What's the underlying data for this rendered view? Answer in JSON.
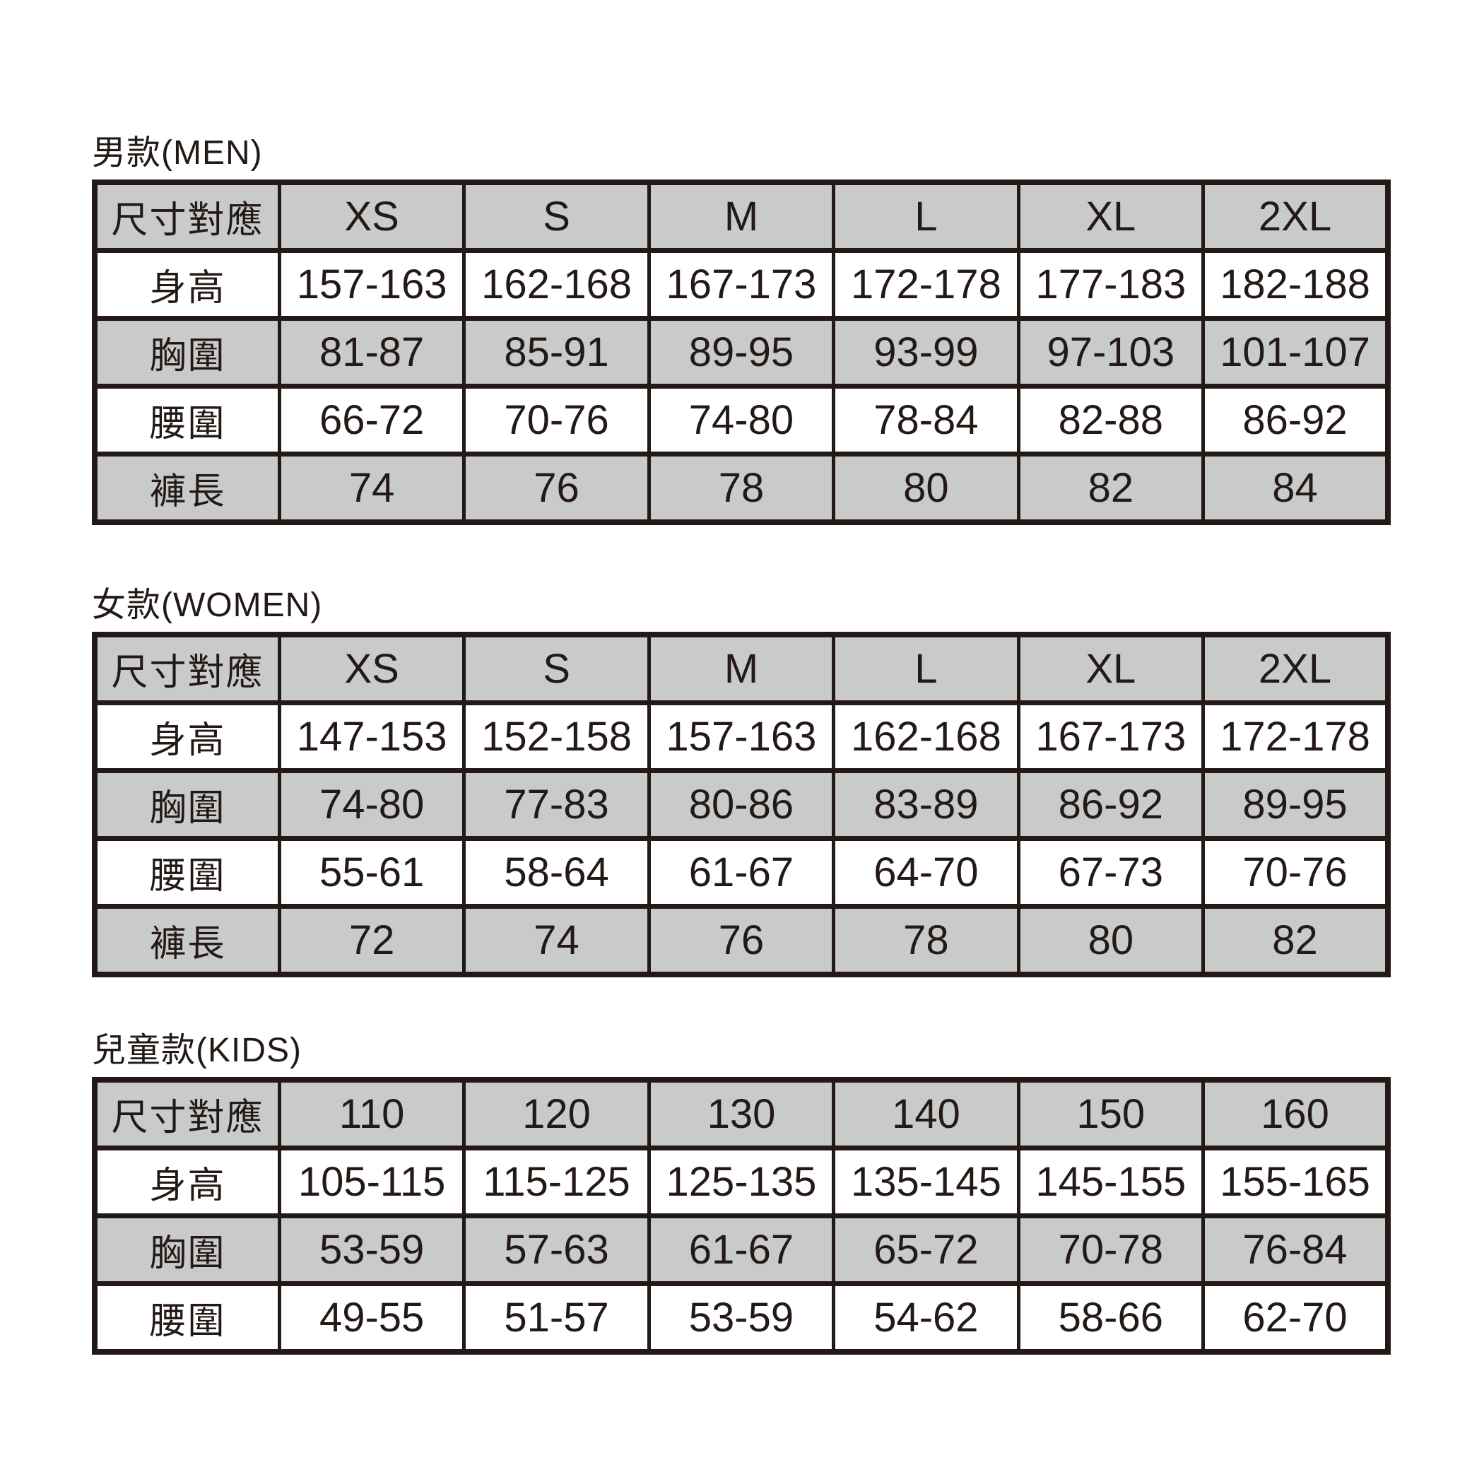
{
  "colors": {
    "ink": "#231916",
    "cell-gray": "#c9caca",
    "paper": "#ffffff"
  },
  "tables": [
    {
      "id": "men",
      "title": "男款(MEN)",
      "header": [
        "尺寸對應",
        "XS",
        "S",
        "M",
        "L",
        "XL",
        "2XL"
      ],
      "rows": [
        {
          "label": "身高",
          "values": [
            "157-163",
            "162-168",
            "167-173",
            "172-178",
            "177-183",
            "182-188"
          ]
        },
        {
          "label": "胸圍",
          "values": [
            "81-87",
            "85-91",
            "89-95",
            "93-99",
            "97-103",
            "101-107"
          ]
        },
        {
          "label": "腰圍",
          "values": [
            "66-72",
            "70-76",
            "74-80",
            "78-84",
            "82-88",
            "86-92"
          ]
        },
        {
          "label": "褲長",
          "values": [
            "74",
            "76",
            "78",
            "80",
            "82",
            "84"
          ]
        }
      ]
    },
    {
      "id": "women",
      "title": "女款(WOMEN)",
      "header": [
        "尺寸對應",
        "XS",
        "S",
        "M",
        "L",
        "XL",
        "2XL"
      ],
      "rows": [
        {
          "label": "身高",
          "values": [
            "147-153",
            "152-158",
            "157-163",
            "162-168",
            "167-173",
            "172-178"
          ]
        },
        {
          "label": "胸圍",
          "values": [
            "74-80",
            "77-83",
            "80-86",
            "83-89",
            "86-92",
            "89-95"
          ]
        },
        {
          "label": "腰圍",
          "values": [
            "55-61",
            "58-64",
            "61-67",
            "64-70",
            "67-73",
            "70-76"
          ]
        },
        {
          "label": "褲長",
          "values": [
            "72",
            "74",
            "76",
            "78",
            "80",
            "82"
          ]
        }
      ]
    },
    {
      "id": "kids",
      "title": "兒童款(KIDS)",
      "header": [
        "尺寸對應",
        "110",
        "120",
        "130",
        "140",
        "150",
        "160"
      ],
      "rows": [
        {
          "label": "身高",
          "values": [
            "105-115",
            "115-125",
            "125-135",
            "135-145",
            "145-155",
            "155-165"
          ]
        },
        {
          "label": "胸圍",
          "values": [
            "53-59",
            "57-63",
            "61-67",
            "65-72",
            "70-78",
            "76-84"
          ]
        },
        {
          "label": "腰圍",
          "values": [
            "49-55",
            "51-57",
            "53-59",
            "54-62",
            "58-66",
            "62-70"
          ]
        }
      ]
    }
  ]
}
